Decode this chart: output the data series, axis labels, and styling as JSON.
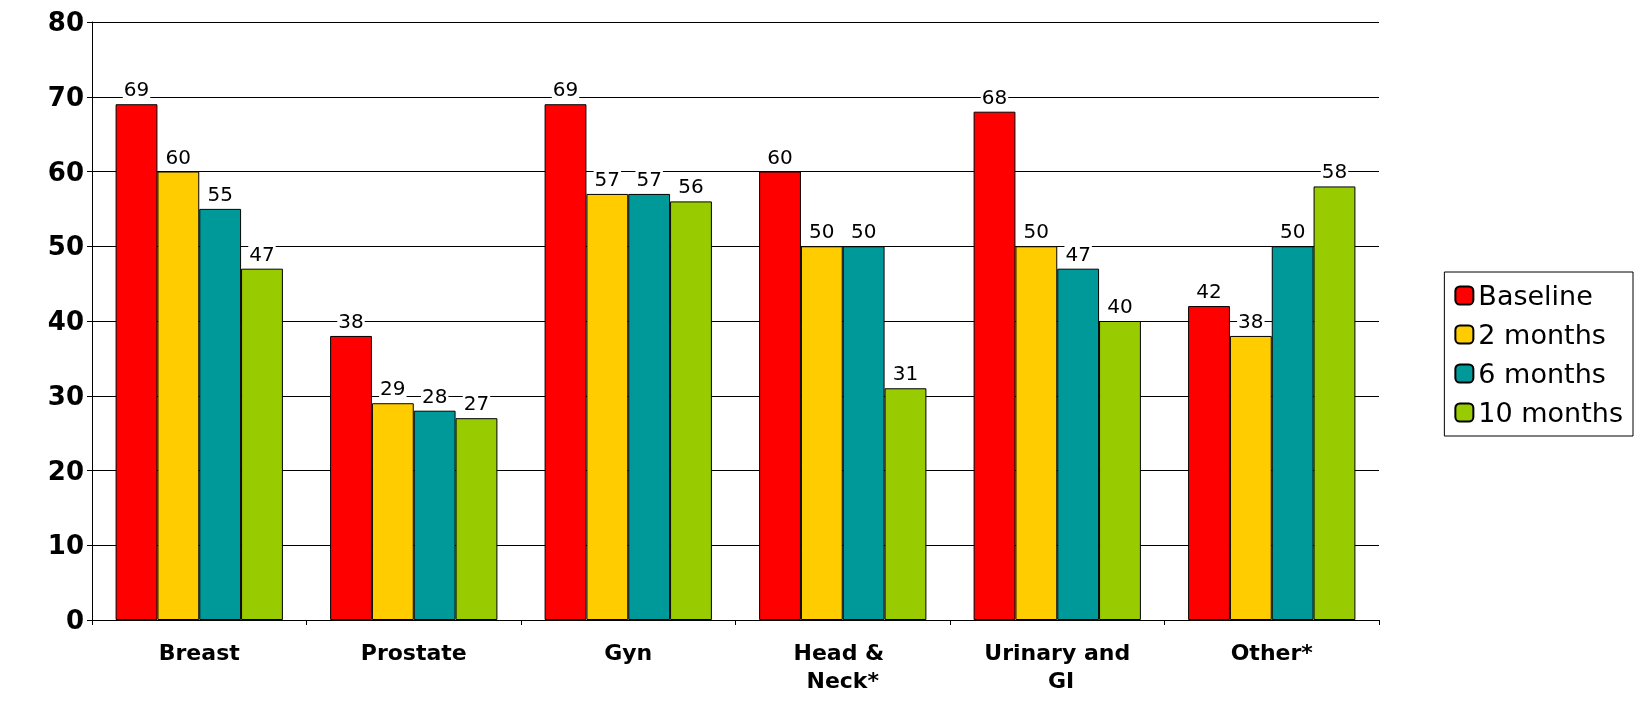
{
  "chart_data": {
    "type": "bar",
    "categories": [
      "Breast",
      "Prostate",
      "Gyn",
      "Head & Neck*",
      "Urinary and GI",
      "Other*"
    ],
    "series": [
      {
        "name": "Baseline",
        "color": "#ff0000",
        "values": [
          69,
          38,
          69,
          60,
          68,
          42
        ]
      },
      {
        "name": "2 months",
        "color": "#ffcc00",
        "values": [
          60,
          29,
          57,
          50,
          50,
          38
        ]
      },
      {
        "name": "6 months",
        "color": "#009999",
        "values": [
          55,
          28,
          57,
          50,
          47,
          50
        ]
      },
      {
        "name": "10 months",
        "color": "#99cc00",
        "values": [
          47,
          27,
          56,
          31,
          40,
          58
        ]
      }
    ],
    "ylim": [
      0,
      80
    ],
    "yticks": [
      0,
      10,
      20,
      30,
      40,
      50,
      60,
      70,
      80
    ],
    "grid": "y",
    "legend": "right",
    "data_labels": true
  }
}
